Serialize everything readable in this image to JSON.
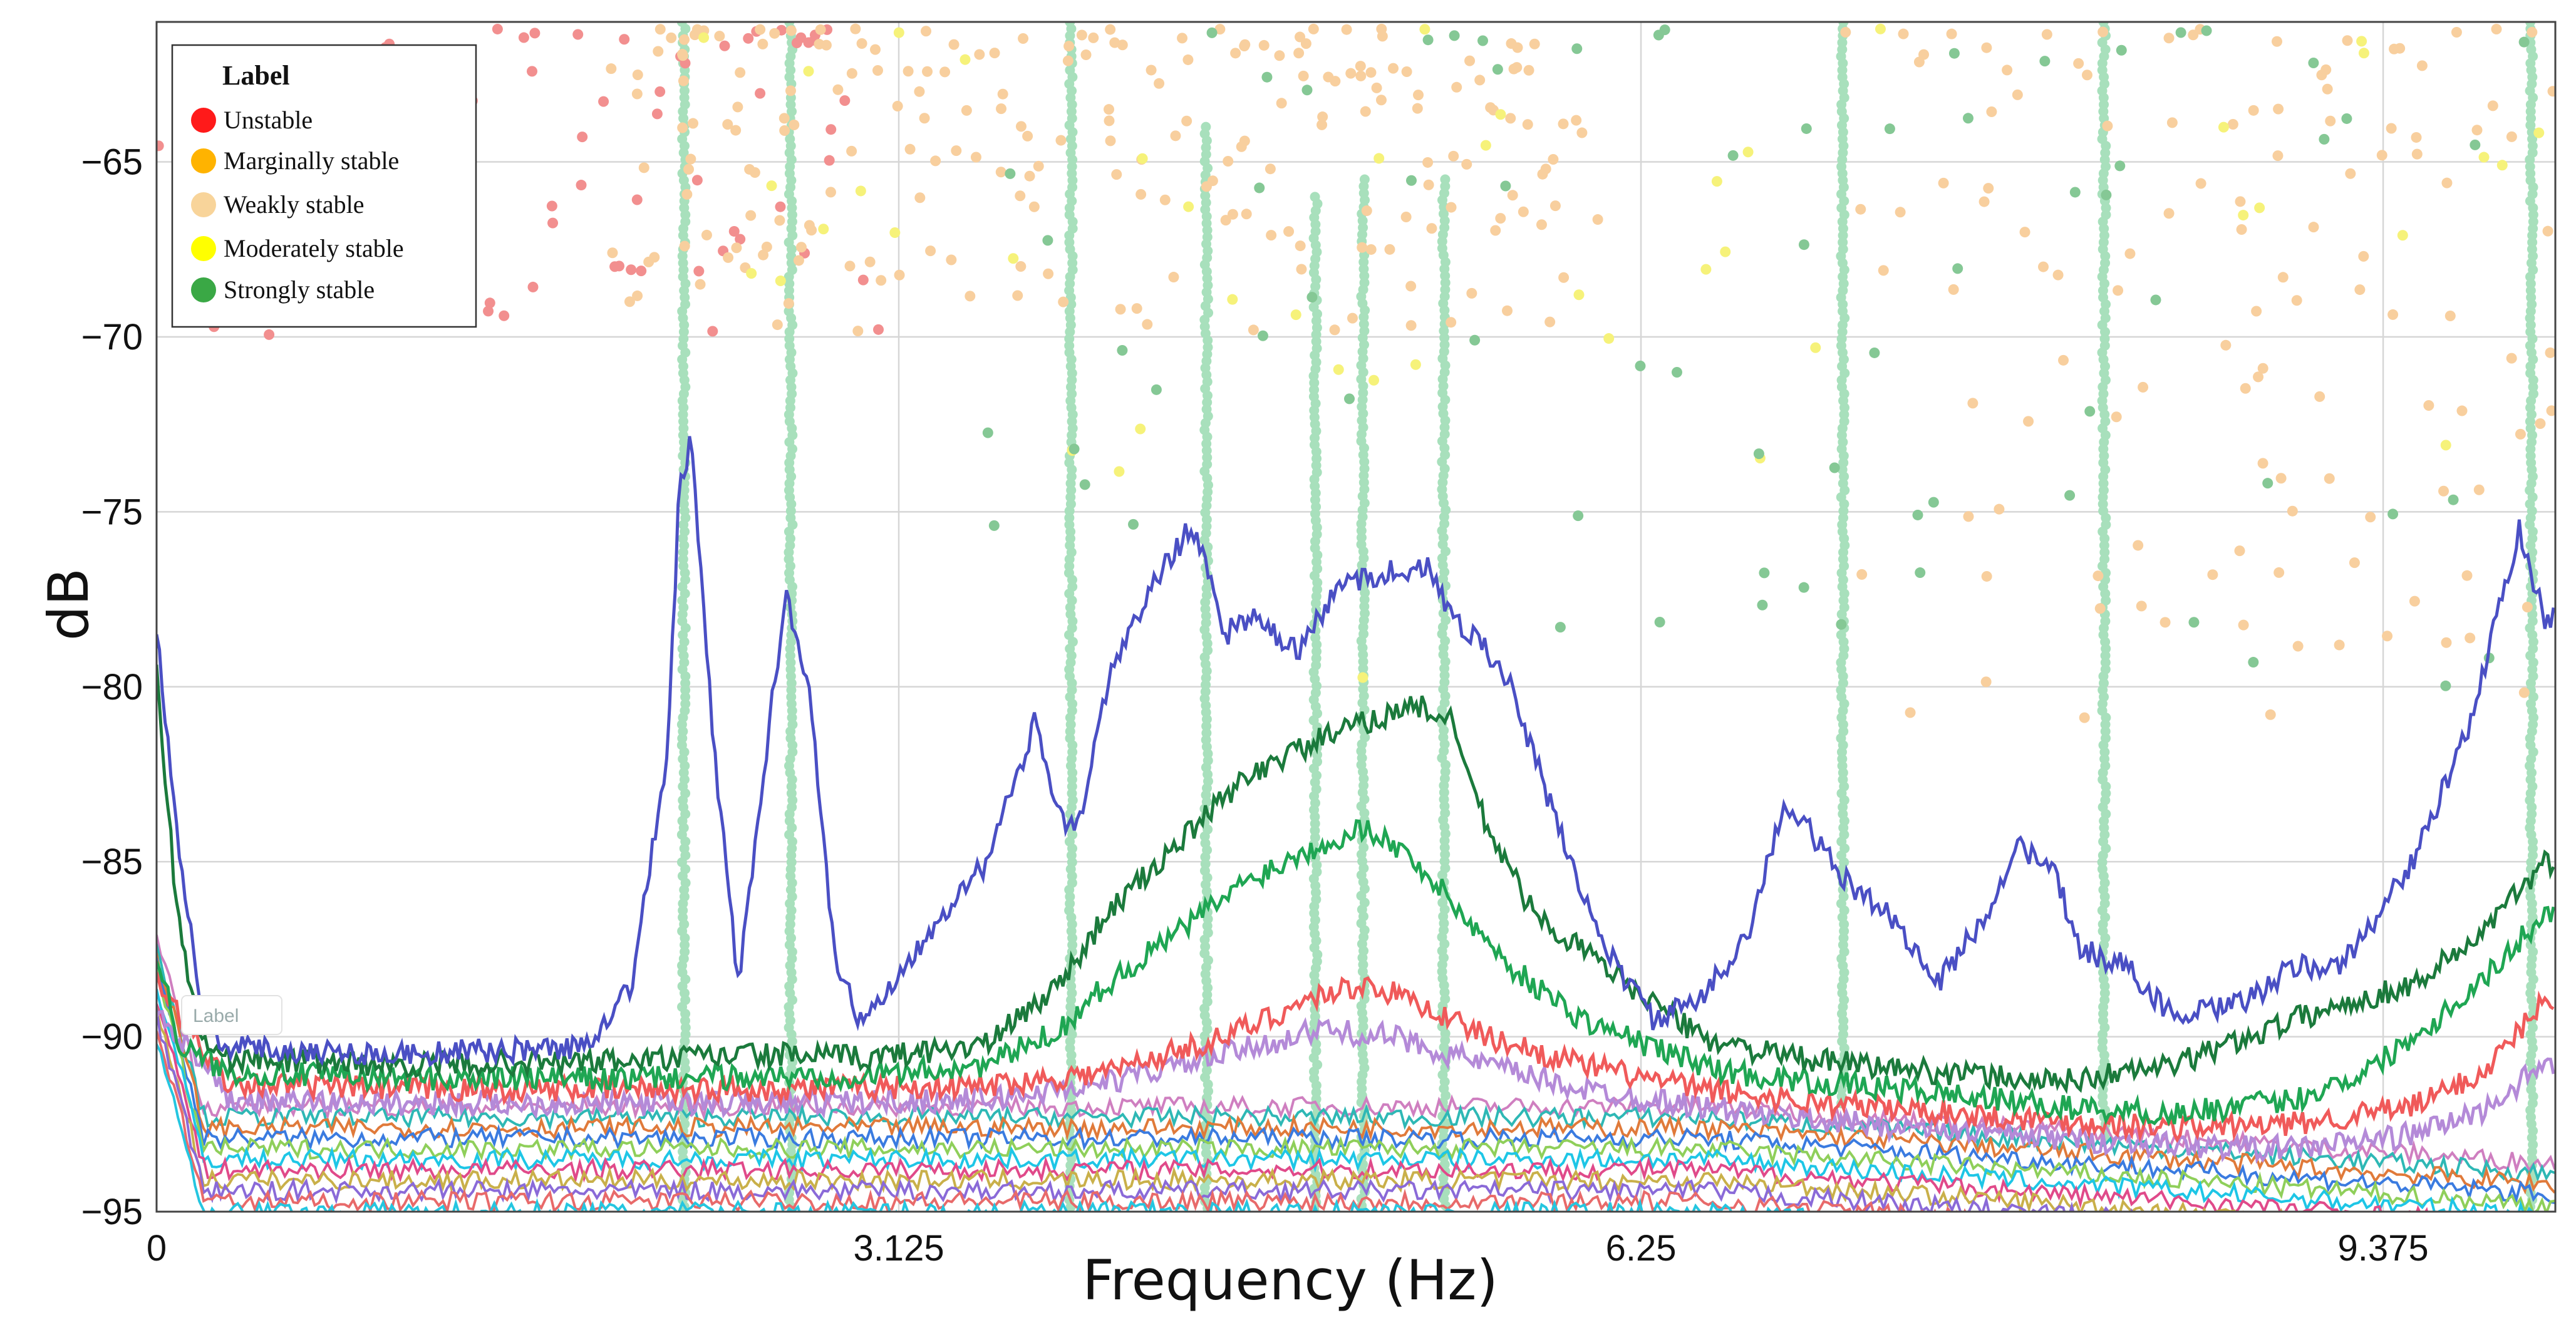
{
  "chart_data": {
    "type": "line",
    "xlabel": "Frequency (Hz)",
    "ylabel": "dB",
    "xlim": [
      0,
      10.1
    ],
    "ylim": [
      -95,
      -61
    ],
    "x_ticks": [
      0,
      3.125,
      6.25,
      9.375
    ],
    "x_tick_labels": [
      "0",
      "3.125",
      "6.25",
      "9.375"
    ],
    "y_ticks": [
      -65,
      -70,
      -75,
      -80,
      -85,
      -90,
      -95
    ],
    "y_tick_labels": [
      "−65",
      "−70",
      "−75",
      "−80",
      "−85",
      "−90",
      "−95"
    ],
    "grid": true,
    "legend": {
      "title": "Label",
      "placement": "top-left",
      "items": [
        {
          "label": "Unstable",
          "color": "#ff1a1a"
        },
        {
          "label": "Marginally stable",
          "color": "#ffb300"
        },
        {
          "label": "Weakly stable",
          "color": "#f8d49a"
        },
        {
          "label": "Moderately stable",
          "color": "#ffff00"
        },
        {
          "label": "Strongly stable",
          "color": "#3aa845"
        }
      ]
    },
    "ghost_label": "Label",
    "series": [
      {
        "color": "#4a4fc4",
        "x": [
          0,
          0.1,
          0.2,
          0.3,
          1.0,
          1.8,
          2.0,
          2.15,
          2.2,
          2.25,
          2.35,
          2.45,
          2.6,
          2.65,
          2.75,
          2.85,
          2.95,
          3.1,
          3.3,
          3.5,
          3.7,
          3.8,
          3.85,
          3.9,
          4.0,
          4.2,
          4.35,
          4.4,
          4.5,
          4.6,
          4.8,
          5.0,
          5.2,
          5.35,
          5.45,
          5.55,
          5.7,
          5.9,
          6.1,
          6.3,
          6.5,
          6.7,
          6.85,
          6.95,
          7.1,
          7.3,
          7.5,
          7.7,
          7.85,
          8.0,
          8.1,
          8.3,
          8.5,
          8.8,
          9.0,
          9.2,
          9.5,
          9.75,
          9.85,
          9.95,
          10.05
        ],
        "y": [
          -78.3,
          -85,
          -89.5,
          -90.3,
          -90.5,
          -90.3,
          -88.5,
          -82,
          -74.5,
          -73,
          -82,
          -88.5,
          -80,
          -77.3,
          -80,
          -87.5,
          -89.5,
          -88.5,
          -86.5,
          -85,
          -81,
          -83.5,
          -84,
          -83.5,
          -80,
          -77,
          -75.5,
          -76,
          -78.5,
          -78,
          -79,
          -77,
          -76.7,
          -76.6,
          -78,
          -78.5,
          -80,
          -84,
          -87.5,
          -89.5,
          -89,
          -87,
          -83.5,
          -84,
          -85.5,
          -86.5,
          -88.5,
          -86.5,
          -84.5,
          -85.5,
          -87.5,
          -88,
          -89.5,
          -89,
          -88,
          -88,
          -85,
          -81,
          -78,
          -75.5,
          -78
        ]
      },
      {
        "color": "#1b7a3c",
        "x": [
          0,
          0.08,
          0.18,
          0.3,
          1.0,
          2.0,
          2.5,
          3.0,
          3.5,
          3.8,
          4.0,
          4.3,
          4.6,
          4.9,
          5.1,
          5.3,
          5.45,
          5.6,
          5.8,
          6.0,
          6.2,
          6.5,
          6.8,
          7.0,
          7.5,
          8.0,
          8.5,
          9.0,
          9.5,
          9.8,
          10.05
        ],
        "y": [
          -79.5,
          -86,
          -90,
          -90.6,
          -90.8,
          -90.7,
          -90.5,
          -90.6,
          -90.2,
          -88.5,
          -86.5,
          -84.5,
          -82.5,
          -81.5,
          -81,
          -80.5,
          -81,
          -84,
          -86.5,
          -87.5,
          -88.5,
          -90,
          -90.5,
          -90.7,
          -91,
          -91.3,
          -90.8,
          -89.5,
          -88.5,
          -87,
          -85
        ]
      },
      {
        "color": "#1fa653",
        "x": [
          0,
          0.1,
          0.3,
          1.0,
          2.0,
          3.0,
          3.5,
          3.8,
          4.0,
          4.3,
          4.6,
          4.9,
          5.1,
          5.3,
          5.5,
          5.7,
          6.0,
          6.3,
          6.6,
          7.0,
          7.5,
          8.0,
          8.5,
          9.0,
          9.3,
          9.6,
          9.85,
          10.05
        ],
        "y": [
          -87.5,
          -90.3,
          -91,
          -91.2,
          -91.2,
          -91.1,
          -90.8,
          -89.8,
          -88.5,
          -87,
          -85.5,
          -84.5,
          -84,
          -85,
          -86.5,
          -88,
          -89.5,
          -90.3,
          -91,
          -91.3,
          -91.6,
          -92,
          -92.2,
          -91.8,
          -91,
          -89.5,
          -88,
          -86.5
        ]
      },
      {
        "color": "#f05a5a",
        "x": [
          0,
          0.3,
          1.0,
          2.5,
          3.5,
          4.0,
          4.5,
          4.9,
          5.1,
          5.3,
          5.6,
          6.0,
          6.5,
          7.0,
          8.0,
          8.5,
          9.0,
          9.5,
          9.8,
          10.05
        ],
        "y": [
          -88.5,
          -91.3,
          -91.5,
          -91.5,
          -91.4,
          -91,
          -90,
          -88.8,
          -88.5,
          -89,
          -90,
          -90.8,
          -91.5,
          -91.9,
          -92.4,
          -92.6,
          -92.5,
          -92,
          -91,
          -89
        ]
      },
      {
        "color": "#b48ad8",
        "x": [
          0,
          0.3,
          1.0,
          2.5,
          3.5,
          4.0,
          4.5,
          4.9,
          5.2,
          5.6,
          6.0,
          6.5,
          7.0,
          8.0,
          8.5,
          9.0,
          9.5,
          9.8,
          10.05
        ],
        "y": [
          -89.2,
          -91.8,
          -91.9,
          -91.9,
          -91.8,
          -91.3,
          -90.5,
          -89.8,
          -90,
          -90.8,
          -91.5,
          -92,
          -92.4,
          -92.9,
          -93.1,
          -93.2,
          -92.8,
          -92.1,
          -90.8
        ]
      }
    ],
    "noise_floor_series": [
      {
        "color": "#cf7fc0",
        "base": -92.0
      },
      {
        "color": "#2eb8b5",
        "base": -92.3
      },
      {
        "color": "#e07a3a",
        "base": -92.6
      },
      {
        "color": "#3a7be0",
        "base": -92.9
      },
      {
        "color": "#8fcf5a",
        "base": -93.2
      },
      {
        "color": "#1ec6e6",
        "base": -93.5
      },
      {
        "color": "#e04a8a",
        "base": -93.8
      },
      {
        "color": "#c9b04a",
        "base": -94.1
      },
      {
        "color": "#8a6ad8",
        "base": -94.4
      },
      {
        "color": "#e86a6a",
        "base": -94.7
      },
      {
        "color": "#25c6e0",
        "base": -95.0
      }
    ],
    "stabilization_columns": [
      {
        "x": 2.22,
        "y_from": -61,
        "y_to": -95,
        "color": "#a8e0bc"
      },
      {
        "x": 2.67,
        "y_from": -61,
        "y_to": -95,
        "color": "#a8e0bc"
      },
      {
        "x": 3.85,
        "y_from": -61,
        "y_to": -95,
        "color": "#a8e0bc"
      },
      {
        "x": 4.42,
        "y_from": -64,
        "y_to": -95,
        "color": "#a8e0bc"
      },
      {
        "x": 4.88,
        "y_from": -66,
        "y_to": -95,
        "color": "#a8e0bc"
      },
      {
        "x": 5.08,
        "y_from": -65.5,
        "y_to": -95,
        "color": "#a8e0bc"
      },
      {
        "x": 5.42,
        "y_from": -65.5,
        "y_to": -95,
        "color": "#a8e0bc"
      },
      {
        "x": 7.1,
        "y_from": -61,
        "y_to": -92,
        "color": "#a8e0bc"
      },
      {
        "x": 8.2,
        "y_from": -61,
        "y_to": -93,
        "color": "#a8e0bc"
      },
      {
        "x": 10.0,
        "y_from": -61,
        "y_to": -95,
        "color": "#a8e0bc"
      }
    ],
    "scatter_clusters": [
      {
        "label": "Unstable",
        "color": "#f28f8f",
        "x_range": [
          0.0,
          3.1
        ],
        "y_range": [
          -70,
          -61.2
        ],
        "n": 70
      },
      {
        "label": "Weakly stable",
        "color": "#f8cf9e",
        "x_range": [
          1.9,
          6.1
        ],
        "y_range": [
          -70,
          -61.2
        ],
        "n": 220
      },
      {
        "label": "Weakly stable",
        "color": "#f8cf9e",
        "x_range": [
          7.1,
          10.1
        ],
        "y_range": [
          -81,
          -61.2
        ],
        "n": 120
      },
      {
        "label": "Moderately stable",
        "color": "#f6f27a",
        "x_range": [
          2.0,
          10.1
        ],
        "y_range": [
          -80,
          -61.2
        ],
        "n": 45
      },
      {
        "label": "Strongly stable",
        "color": "#85c895",
        "x_range": [
          3.5,
          10.1
        ],
        "y_range": [
          -80,
          -61.2
        ],
        "n": 70
      }
    ]
  }
}
